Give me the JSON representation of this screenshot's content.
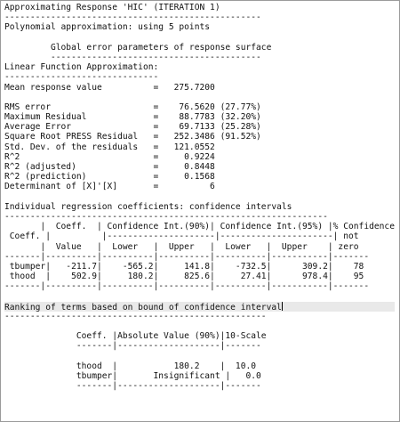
{
  "report": {
    "lines": [
      "Approximating Response 'HIC' (ITERATION 1)",
      "--------------------------------------------------",
      "Polynomial approximation: using 5 points",
      "",
      "         Global error parameters of response surface",
      "         -----------------------------------------",
      "Linear Function Approximation:",
      "------------------------------",
      "Mean response value          =   275.7200",
      "",
      "RMS error                    =    76.5620 (27.77%)",
      "Maximum Residual             =    88.7783 (32.20%)",
      "Average Error                =    69.7133 (25.28%)",
      "Square Root PRESS Residual   =   252.3486 (91.52%)",
      "Std. Dev. of the residuals   =   121.0552",
      "R^2                          =     0.9224",
      "R^2 (adjusted)               =     0.8448",
      "R^2 (prediction)             =     0.1568",
      "Determinant of [X]'[X]       =          6",
      "",
      "Individual regression coefficients: confidence intervals",
      "---------------------------------------------------------------",
      "       |  Coeff.  | Confidence Int.(90%)| Confidence Int.(95%) |% Confidence",
      " Coeff. |          |---------------------|----------------------| not",
      "       |  Value   |  Lower   |  Upper   |  Lower   |  Upper    | zero",
      "-------|----------|----------|----------|----------|-----------|-------",
      " tbumper|   -211.7|    -565.2|     141.8|    -732.5|      309.2|    78",
      " thood  |    502.9|     180.2|     825.6|     27.41|      978.4|    95",
      "-------|----------|----------|----------|----------|-----------|-------",
      "",
      "Ranking of terms based on bound of confidence interval",
      "---------------------------------------------------",
      "",
      "              Coeff. |Absolute Value (90%)|10-Scale",
      "              -------|--------------------|-------",
      "",
      "              thood  |           180.2    |  10.0",
      "              tbumper|       Insignificant |   0.0",
      "              -------|--------------------|-------"
    ]
  }
}
